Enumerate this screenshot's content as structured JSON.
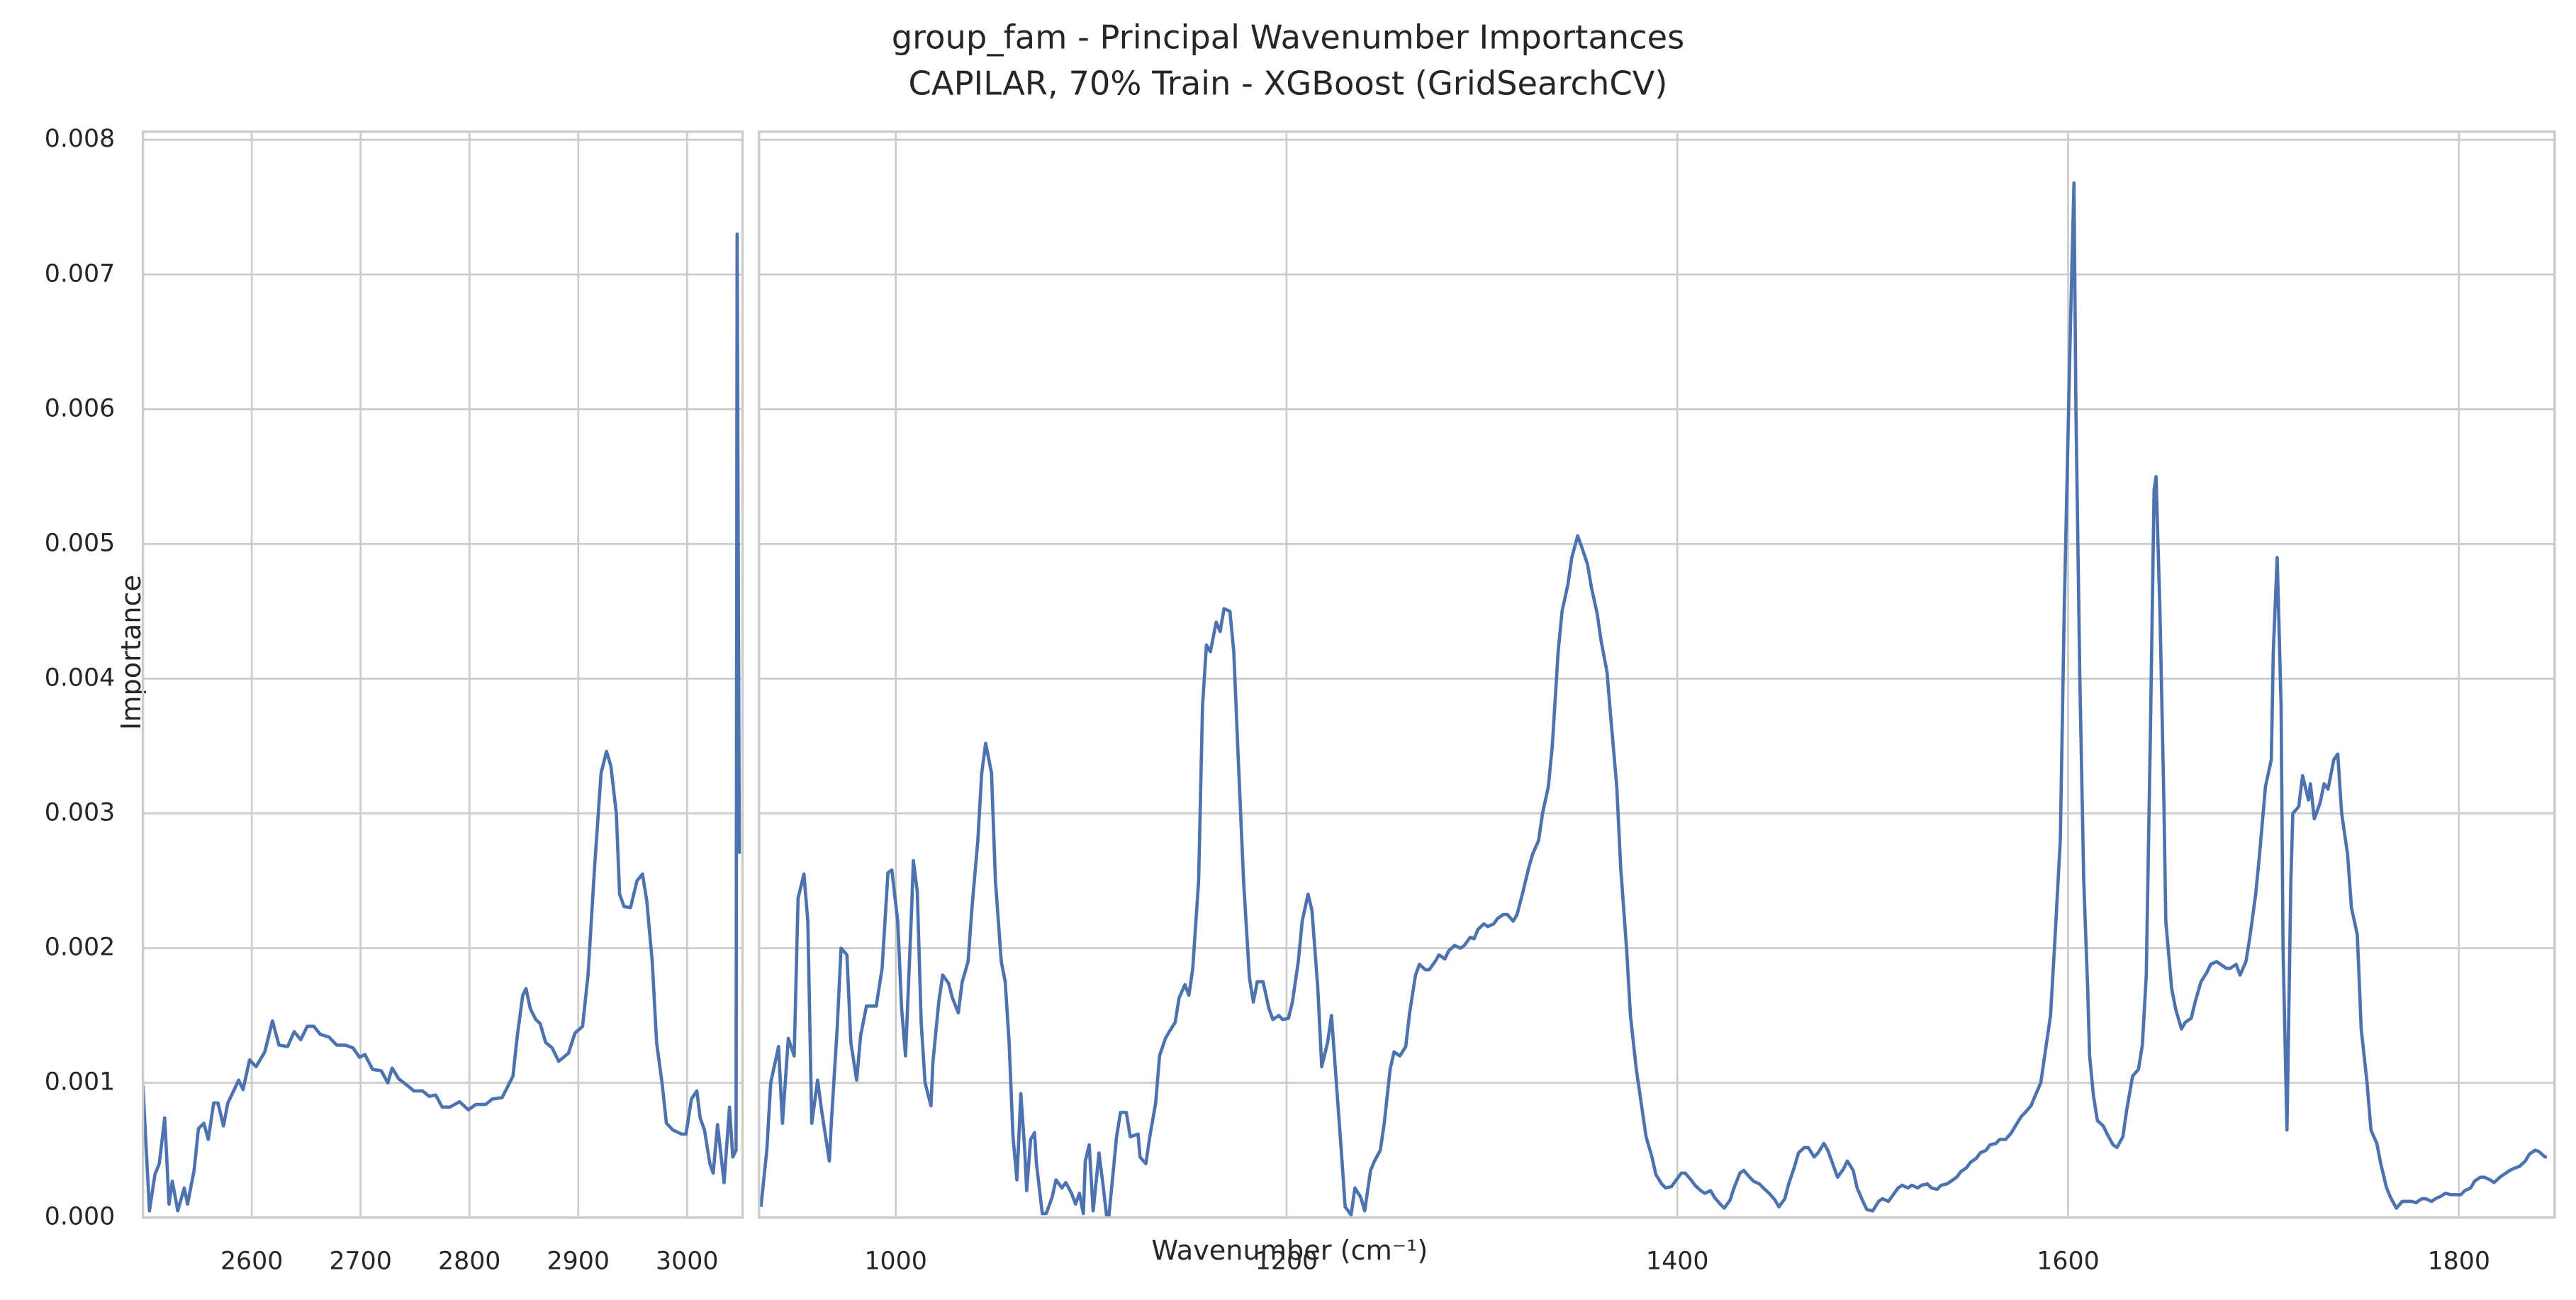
{
  "figure": {
    "title": "group_fam - Principal Wavenumber Importances",
    "subtitle": "CAPILAR, 70% Train - XGBoost (GridSearchCV)",
    "xlabel": "Wavenumber (cm⁻¹)",
    "ylabel": "Importance",
    "ylim": [
      0,
      0.00806
    ],
    "yticks": [
      {
        "value": 0,
        "label": "0.000"
      },
      {
        "value": 0.001,
        "label": "0.001"
      },
      {
        "value": 0.002,
        "label": "0.002"
      },
      {
        "value": 0.003,
        "label": "0.003"
      },
      {
        "value": 0.004,
        "label": "0.004"
      },
      {
        "value": 0.005,
        "label": "0.005"
      },
      {
        "value": 0.006,
        "label": "0.006"
      },
      {
        "value": 0.007,
        "label": "0.007"
      },
      {
        "value": 0.008,
        "label": "0.008"
      }
    ],
    "grid": true
  },
  "chart_data": [
    {
      "type": "line",
      "color": "#4c72b0",
      "xlim": [
        2500,
        3051
      ],
      "xticks": [
        2600,
        2700,
        2800,
        2900,
        3000
      ],
      "x": [
        2500,
        2506,
        2511,
        2515,
        2520,
        2524,
        2527,
        2532,
        2538,
        2541,
        2547,
        2551,
        2556,
        2560,
        2565,
        2569,
        2574,
        2578,
        2588,
        2592,
        2598,
        2604,
        2612,
        2619,
        2625,
        2633,
        2639,
        2645,
        2651,
        2657,
        2663,
        2671,
        2678,
        2686,
        2693,
        2699,
        2704,
        2711,
        2719,
        2725,
        2729,
        2735,
        2743,
        2749,
        2757,
        2763,
        2769,
        2775,
        2782,
        2791,
        2799,
        2806,
        2815,
        2821,
        2830,
        2840,
        2844,
        2849,
        2852,
        2856,
        2861,
        2865,
        2870,
        2876,
        2882,
        2891,
        2897,
        2904,
        2909,
        2915,
        2921,
        2926,
        2930,
        2935,
        2938,
        2942,
        2948,
        2954,
        2959,
        2963,
        2968,
        2972,
        2977,
        2981,
        2987,
        2995,
        2999,
        3004,
        3009,
        3012,
        3016,
        3021,
        3024,
        3028,
        3034,
        3039,
        3042,
        3045,
        3046,
        3048
      ],
      "values": [
        0.00098,
        5e-05,
        0.00032,
        0.0004,
        0.00074,
        0.0001,
        0.00027,
        5e-05,
        0.00022,
        0.0001,
        0.00035,
        0.00066,
        0.0007,
        0.00058,
        0.00085,
        0.00085,
        0.00068,
        0.00085,
        0.00102,
        0.00095,
        0.00117,
        0.00112,
        0.00123,
        0.00146,
        0.00128,
        0.00127,
        0.00138,
        0.00132,
        0.00142,
        0.00142,
        0.00136,
        0.00134,
        0.00128,
        0.00128,
        0.00126,
        0.00119,
        0.00121,
        0.0011,
        0.00109,
        0.001,
        0.00111,
        0.00103,
        0.00098,
        0.00094,
        0.00094,
        0.0009,
        0.00091,
        0.00082,
        0.00082,
        0.00086,
        0.0008,
        0.00084,
        0.00084,
        0.00088,
        0.00089,
        0.00105,
        0.00135,
        0.00165,
        0.0017,
        0.00155,
        0.00147,
        0.00144,
        0.0013,
        0.00126,
        0.00116,
        0.00122,
        0.00137,
        0.00142,
        0.0018,
        0.0026,
        0.0033,
        0.00346,
        0.00335,
        0.003,
        0.0024,
        0.00231,
        0.0023,
        0.0025,
        0.00255,
        0.00235,
        0.0019,
        0.0013,
        0.001,
        0.0007,
        0.00065,
        0.00062,
        0.00062,
        0.00088,
        0.00094,
        0.00074,
        0.00065,
        0.0004,
        0.00033,
        0.00069,
        0.00026,
        0.00082,
        0.00045,
        0.0005,
        0.0073,
        0.0027
      ]
    },
    {
      "type": "line",
      "color": "#4c72b0",
      "xlim": [
        930,
        1849
      ],
      "xticks": [
        1000,
        1200,
        1400,
        1600,
        1800
      ],
      "x": [
        931,
        934,
        936,
        940,
        942,
        945,
        948,
        950,
        953,
        955,
        957,
        960,
        962,
        966,
        967,
        970,
        972,
        975,
        977,
        980,
        982,
        985,
        990,
        993,
        996,
        998,
        1001,
        1003,
        1005,
        1008,
        1009,
        1011,
        1013,
        1015,
        1018,
        1019,
        1022,
        1024,
        1027,
        1029,
        1032,
        1034,
        1037,
        1039,
        1042,
        1044,
        1046,
        1049,
        1051,
        1054,
        1056,
        1058,
        1060,
        1062,
        1064,
        1066,
        1067,
        1069,
        1071,
        1072,
        1075,
        1077,
        1080,
        1082,
        1085,
        1087,
        1090,
        1092,
        1094,
        1096,
        1097,
        1099,
        1101,
        1103,
        1104,
        1106,
        1108,
        1109,
        1111,
        1113,
        1115,
        1118,
        1120,
        1124,
        1125,
        1128,
        1130,
        1133,
        1135,
        1138,
        1140,
        1143,
        1145,
        1148,
        1150,
        1152,
        1155,
        1157,
        1159,
        1161,
        1164,
        1166,
        1168,
        1171,
        1173,
        1175,
        1178,
        1181,
        1183,
        1185,
        1188,
        1191,
        1193,
        1196,
        1198,
        1201,
        1203,
        1206,
        1208,
        1211,
        1213,
        1216,
        1218,
        1221,
        1223,
        1225,
        1228,
        1230,
        1233,
        1235,
        1238,
        1240,
        1243,
        1245,
        1248,
        1250,
        1253,
        1255,
        1258,
        1261,
        1263,
        1266,
        1268,
        1271,
        1273,
        1276,
        1278,
        1281,
        1283,
        1286,
        1289,
        1291,
        1294,
        1296,
        1298,
        1301,
        1303,
        1306,
        1308,
        1311,
        1313,
        1316,
        1318,
        1321,
        1324,
        1326,
        1329,
        1331,
        1334,
        1336,
        1339,
        1341,
        1344,
        1346,
        1349,
        1351,
        1354,
        1356,
        1359,
        1361,
        1364,
        1366,
        1369,
        1371,
        1374,
        1376,
        1379,
        1382,
        1384,
        1387,
        1389,
        1392,
        1394,
        1397,
        1399,
        1402,
        1404,
        1407,
        1409,
        1412,
        1414,
        1417,
        1419,
        1422,
        1424,
        1427,
        1429,
        1432,
        1434,
        1437,
        1439,
        1442,
        1444,
        1447,
        1450,
        1452,
        1455,
        1457,
        1460,
        1462,
        1465,
        1467,
        1470,
        1472,
        1475,
        1477,
        1480,
        1482,
        1485,
        1487,
        1490,
        1492,
        1495,
        1497,
        1500,
        1503,
        1505,
        1508,
        1510,
        1513,
        1515,
        1518,
        1520,
        1523,
        1525,
        1528,
        1530,
        1533,
        1535,
        1538,
        1540,
        1543,
        1545,
        1548,
        1550,
        1553,
        1555,
        1558,
        1560,
        1563,
        1565,
        1568,
        1571,
        1573,
        1576,
        1578,
        1581,
        1583,
        1586,
        1588,
        1591,
        1593,
        1596,
        1598,
        1601,
        1603,
        1604,
        1606,
        1608,
        1610,
        1611,
        1613,
        1615,
        1618,
        1620,
        1623,
        1625,
        1628,
        1630,
        1633,
        1636,
        1638,
        1640,
        1642,
        1644,
        1645,
        1647,
        1649,
        1650,
        1653,
        1655,
        1658,
        1660,
        1663,
        1665,
        1668,
        1671,
        1673,
        1676,
        1678,
        1681,
        1683,
        1686,
        1688,
        1691,
        1693,
        1696,
        1698,
        1701,
        1704,
        1705,
        1707,
        1709,
        1710,
        1712,
        1714,
        1715,
        1718,
        1720,
        1723,
        1724,
        1726,
        1729,
        1731,
        1733,
        1736,
        1738,
        1740,
        1743,
        1745,
        1748,
        1750,
        1753,
        1755,
        1758,
        1760,
        1763,
        1765,
        1768,
        1771,
        1773,
        1776,
        1778,
        1781,
        1783,
        1786,
        1788,
        1791,
        1793,
        1796,
        1798,
        1801,
        1803,
        1806,
        1808,
        1811,
        1813,
        1816,
        1818,
        1821,
        1824,
        1826,
        1829,
        1831,
        1834,
        1836,
        1839,
        1841,
        1844,
        1845
      ],
      "values": [
        8e-05,
        0.0005,
        0.001,
        0.00127,
        0.0007,
        0.00133,
        0.0012,
        0.00237,
        0.00255,
        0.0022,
        0.0007,
        0.00102,
        0.0008,
        0.00042,
        0.0007,
        0.0014,
        0.002,
        0.00195,
        0.0013,
        0.00102,
        0.00135,
        0.00157,
        0.00157,
        0.00185,
        0.00256,
        0.00258,
        0.0022,
        0.00155,
        0.0012,
        0.00225,
        0.00265,
        0.00242,
        0.00145,
        0.001,
        0.00083,
        0.00115,
        0.0016,
        0.0018,
        0.00174,
        0.00163,
        0.00152,
        0.00175,
        0.0019,
        0.0023,
        0.0028,
        0.0033,
        0.00352,
        0.0033,
        0.0025,
        0.0019,
        0.00175,
        0.0013,
        0.0006,
        0.00028,
        0.00092,
        0.0005,
        0.0002,
        0.00058,
        0.00063,
        0.0004,
        3e-05,
        3e-05,
        0.00015,
        0.00028,
        0.00022,
        0.00026,
        0.00018,
        0.0001,
        0.00018,
        3e-05,
        0.00042,
        0.00054,
        5e-05,
        0.00033,
        0.00048,
        0.00025,
        0,
        0,
        0.0003,
        0.0006,
        0.00078,
        0.00078,
        0.0006,
        0.00062,
        0.00045,
        0.0004,
        0.0006,
        0.00085,
        0.0012,
        0.00133,
        0.00138,
        0.00145,
        0.00163,
        0.00173,
        0.00165,
        0.00185,
        0.0025,
        0.0038,
        0.00425,
        0.0042,
        0.00442,
        0.00435,
        0.00452,
        0.0045,
        0.0042,
        0.0035,
        0.0025,
        0.00178,
        0.0016,
        0.00175,
        0.00175,
        0.00155,
        0.00147,
        0.0015,
        0.00147,
        0.00148,
        0.0016,
        0.0019,
        0.0022,
        0.0024,
        0.00228,
        0.0017,
        0.00112,
        0.0013,
        0.0015,
        0.0011,
        0.0005,
        8e-05,
        2e-05,
        0.00022,
        0.00015,
        5e-05,
        0.00035,
        0.00042,
        0.0005,
        0.0007,
        0.0011,
        0.00123,
        0.0012,
        0.00127,
        0.00152,
        0.0018,
        0.00188,
        0.00184,
        0.00184,
        0.0019,
        0.00195,
        0.00192,
        0.00198,
        0.00202,
        0.002,
        0.00202,
        0.00208,
        0.00207,
        0.00214,
        0.00218,
        0.00216,
        0.00218,
        0.00222,
        0.00225,
        0.00225,
        0.0022,
        0.00225,
        0.00242,
        0.0026,
        0.0027,
        0.0028,
        0.003,
        0.0032,
        0.0035,
        0.0042,
        0.0045,
        0.0047,
        0.0049,
        0.00506,
        0.00498,
        0.00485,
        0.00468,
        0.00448,
        0.00428,
        0.00405,
        0.0037,
        0.0032,
        0.0026,
        0.002,
        0.0015,
        0.0011,
        0.0008,
        0.0006,
        0.00045,
        0.00032,
        0.00025,
        0.00022,
        0.00023,
        0.00027,
        0.00033,
        0.00033,
        0.00028,
        0.00024,
        0.0002,
        0.00018,
        0.0002,
        0.00015,
        0.0001,
        7e-05,
        0.00013,
        0.00022,
        0.00033,
        0.00035,
        0.0003,
        0.00027,
        0.00025,
        0.00022,
        0.00018,
        0.00013,
        8e-05,
        0.00014,
        0.00025,
        0.00038,
        0.00048,
        0.00052,
        0.00052,
        0.00045,
        0.00048,
        0.00055,
        0.0005,
        0.00038,
        0.0003,
        0.00036,
        0.00042,
        0.00035,
        0.00022,
        0.00012,
        6e-05,
        5e-05,
        0.00012,
        0.00014,
        0.00012,
        0.00016,
        0.00022,
        0.00024,
        0.00022,
        0.00024,
        0.00022,
        0.00024,
        0.00025,
        0.00022,
        0.00021,
        0.00024,
        0.00025,
        0.00027,
        0.0003,
        0.00034,
        0.00037,
        0.00041,
        0.00044,
        0.00048,
        0.0005,
        0.00054,
        0.00055,
        0.00058,
        0.00058,
        0.00063,
        0.00068,
        0.00075,
        0.00078,
        0.00083,
        0.0009,
        0.001,
        0.0012,
        0.0015,
        0.002,
        0.0028,
        0.0045,
        0.0065,
        0.00768,
        0.006,
        0.004,
        0.0025,
        0.0017,
        0.0012,
        0.0009,
        0.00072,
        0.00068,
        0.00062,
        0.00054,
        0.00052,
        0.0006,
        0.0008,
        0.00105,
        0.0011,
        0.00128,
        0.0018,
        0.0035,
        0.0054,
        0.0055,
        0.0045,
        0.0031,
        0.0022,
        0.0017,
        0.00155,
        0.0014,
        0.00145,
        0.00148,
        0.0016,
        0.00175,
        0.00182,
        0.00188,
        0.0019,
        0.00188,
        0.00185,
        0.00185,
        0.00188,
        0.0018,
        0.0019,
        0.00208,
        0.0024,
        0.0027,
        0.0032,
        0.0034,
        0.0042,
        0.0049,
        0.0038,
        0.002,
        0.00065,
        0.0025,
        0.003,
        0.00305,
        0.00328,
        0.0031,
        0.00322,
        0.00296,
        0.00308,
        0.00322,
        0.00318,
        0.0034,
        0.00344,
        0.003,
        0.0027,
        0.0023,
        0.0021,
        0.0014,
        0.001,
        0.00065,
        0.00055,
        0.0004,
        0.00022,
        0.00015,
        7e-05,
        0.00012,
        0.00012,
        0.00012,
        0.00011,
        0.00014,
        0.00014,
        0.00012,
        0.00014,
        0.00016,
        0.00018,
        0.00017,
        0.00017,
        0.00017,
        0.0002,
        0.00022,
        0.00027,
        0.0003,
        0.0003,
        0.00028,
        0.00026,
        0.0003,
        0.00033,
        0.00035,
        0.00037,
        0.00038,
        0.00042,
        0.00047,
        0.0005,
        0.00049,
        0.00045,
        0.00045
      ]
    }
  ]
}
